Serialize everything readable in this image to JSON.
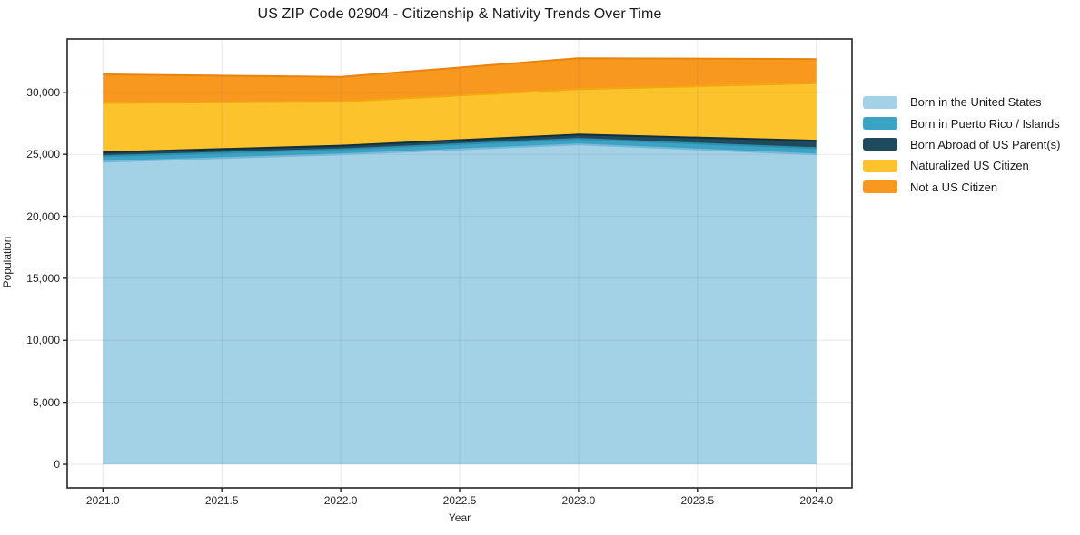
{
  "figure": {
    "title": "US ZIP Code 02904 - Citizenship & Nativity Trends Over Time"
  },
  "chart_data": {
    "type": "area",
    "stacked": true,
    "title": "US ZIP Code 02904 - Citizenship & Nativity Trends Over Time",
    "xlabel": "Year",
    "ylabel": "Population",
    "x": [
      2021,
      2022,
      2023,
      2024
    ],
    "series": [
      {
        "name": "Born in the United States",
        "color": "#A3D2E7",
        "edge_color": "#79B8D9",
        "values": [
          24400,
          25000,
          25800,
          25000
        ]
      },
      {
        "name": "Born in Puerto Rico / Islands",
        "color": "#3BA3C4",
        "edge_color": "#2E8FAD",
        "values": [
          450,
          400,
          450,
          500
        ]
      },
      {
        "name": "Born Abroad of US Parent(s)",
        "color": "#1F4A5E",
        "edge_color": "#10303F",
        "values": [
          300,
          300,
          350,
          600
        ]
      },
      {
        "name": "Naturalized US Citizen",
        "color": "#FCC32C",
        "edge_color": "#F2A90D",
        "values": [
          4000,
          3550,
          3650,
          4630
        ]
      },
      {
        "name": "Not a US Citizen",
        "color": "#F8981F",
        "edge_color": "#E8830D",
        "values": [
          2300,
          2000,
          2500,
          1950
        ]
      }
    ],
    "stacked_totals": [
      31450,
      31250,
      32750,
      32680
    ],
    "xticks": {
      "labels": [
        "2021.0",
        "2021.5",
        "2022.0",
        "2022.5",
        "2023.0",
        "2023.5",
        "2024.0"
      ],
      "values": [
        2021.0,
        2021.5,
        2022.0,
        2022.5,
        2023.0,
        2023.5,
        2024.0
      ]
    },
    "yticks": {
      "labels": [
        "0",
        "5,000",
        "10,000",
        "15,000",
        "20,000",
        "25,000",
        "30,000"
      ],
      "values": [
        0,
        5000,
        10000,
        15000,
        20000,
        25000,
        30000
      ]
    },
    "xlim": [
      2020.85,
      2024.15
    ],
    "ylim": [
      -1900,
      34300
    ],
    "grid": true,
    "legend_position": "right"
  },
  "colors": {
    "background": "#ffffff",
    "grid": "#6b6b6b",
    "spine": "#262626",
    "tick": "#262626",
    "text": "#1a1a1a"
  }
}
